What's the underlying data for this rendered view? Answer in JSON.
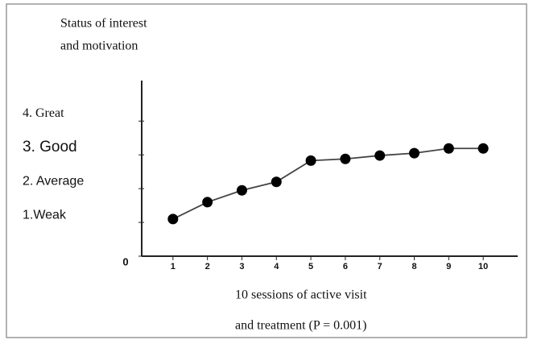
{
  "chart_data": {
    "type": "line",
    "y_label": [
      "Status of interest",
      "and motivation"
    ],
    "x_label": [
      "10 sessions of active visit",
      "and treatment (P = 0.001)"
    ],
    "x": [
      1,
      2,
      3,
      4,
      5,
      6,
      7,
      8,
      9,
      10
    ],
    "series": [
      {
        "color": "#000000",
        "values": [
          1.1,
          1.6,
          1.95,
          2.2,
          2.83,
          2.88,
          2.98,
          3.05,
          3.19,
          3.19
        ]
      }
    ],
    "xlim": [
      0,
      11
    ],
    "xticks": [
      1,
      2,
      3,
      4,
      5,
      6,
      7,
      8,
      9,
      10
    ],
    "ylim": [
      0,
      5.2
    ],
    "yticks": [
      0,
      {
        "value": 1,
        "label": "1.Weak"
      },
      {
        "value": 2,
        "label": "2. Average"
      },
      {
        "value": 3,
        "label": "3. Good"
      },
      {
        "value": 4,
        "label": "4. Great"
      }
    ]
  }
}
